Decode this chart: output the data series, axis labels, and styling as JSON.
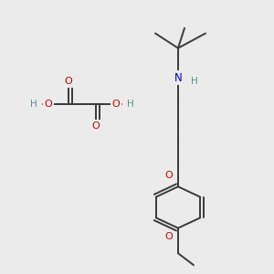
{
  "background_color": "#ebebeb",
  "bond_color": "#3a3a3a",
  "bond_width": 1.4,
  "atom_colors": {
    "C": "#3a3a3a",
    "O": "#cc0000",
    "N": "#0000cc",
    "H": "#5a9090"
  },
  "font_size": 8.0,
  "N_font_size": 8.5
}
